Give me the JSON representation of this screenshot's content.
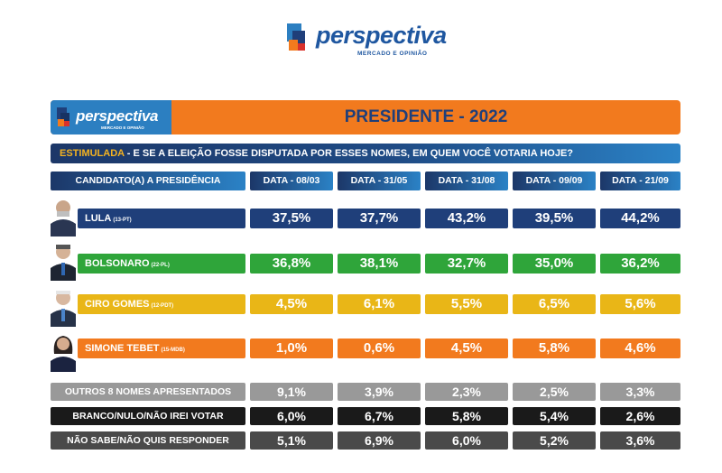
{
  "logo": {
    "brand": "perspectiva",
    "tagline": "MERCADO E OPINIÃO"
  },
  "header": {
    "logo_brand": "perspectiva",
    "logo_tagline": "MERCADO E OPINIÃO",
    "title": "PRESIDENTE - 2022"
  },
  "subtitle": {
    "highlight": "ESTIMULADA",
    "question": " - E SE A ELEIÇÃO FOSSE DISPUTADA POR ESSES NOMES, EM QUEM VOCÊ VOTARIA HOJE?"
  },
  "columns": {
    "first": "CANDIDATO(A) A PRESIDÊNCIA",
    "dates": [
      "DATA - 08/03",
      "DATA - 31/05",
      "DATA - 31/08",
      "DATA - 09/09",
      "DATA - 21/09"
    ]
  },
  "colors": {
    "orange": "#f27a1e",
    "navy": "#1f3f7a",
    "green": "#2fa53a",
    "yellow": "#e9b617",
    "gray": "#999999",
    "black": "#1a1a1a",
    "darkgray": "#4a4a4a"
  },
  "chart_data": {
    "type": "table",
    "categories": [
      "DATA - 08/03",
      "DATA - 31/05",
      "DATA - 31/08",
      "DATA - 09/09",
      "DATA - 21/09"
    ],
    "series": [
      {
        "name": "LULA",
        "party": "(13-PT)",
        "color": "#1f3f7a",
        "values": [
          "37,5%",
          "37,7%",
          "43,2%",
          "39,5%",
          "44,2%"
        ]
      },
      {
        "name": "BOLSONARO",
        "party": "(22-PL)",
        "color": "#2fa53a",
        "values": [
          "36,8%",
          "38,1%",
          "32,7%",
          "35,0%",
          "36,2%"
        ]
      },
      {
        "name": "CIRO GOMES",
        "party": "(12-PDT)",
        "color": "#e9b617",
        "values": [
          "4,5%",
          "6,1%",
          "5,5%",
          "6,5%",
          "5,6%"
        ]
      },
      {
        "name": "SIMONE TEBET",
        "party": "(15-MDB)",
        "color": "#f27a1e",
        "values": [
          "1,0%",
          "0,6%",
          "4,5%",
          "5,8%",
          "4,6%"
        ]
      }
    ],
    "others": [
      {
        "name": "OUTROS 8 NOMES APRESENTADOS",
        "color": "#999999",
        "values": [
          "9,1%",
          "3,9%",
          "2,3%",
          "2,5%",
          "3,3%"
        ]
      },
      {
        "name": "BRANCO/NULO/NÃO IREI VOTAR",
        "color": "#1a1a1a",
        "values": [
          "6,0%",
          "6,7%",
          "5,8%",
          "5,4%",
          "2,6%"
        ]
      },
      {
        "name": "NÃO SABE/NÃO QUIS RESPONDER",
        "color": "#4a4a4a",
        "values": [
          "5,1%",
          "6,9%",
          "6,0%",
          "5,2%",
          "3,6%"
        ]
      }
    ]
  }
}
